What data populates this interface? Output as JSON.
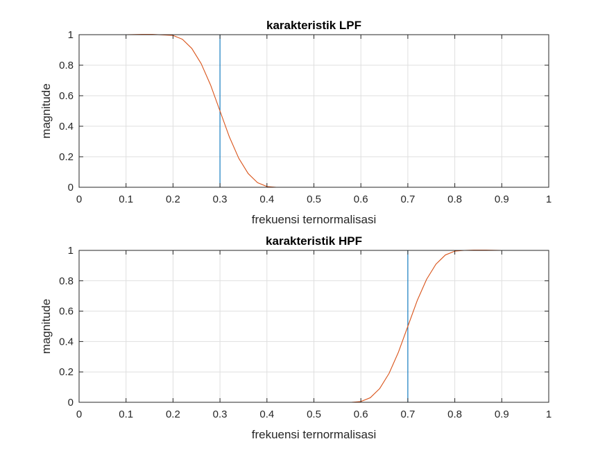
{
  "chart_data": [
    {
      "type": "line",
      "title": "karakteristik LPF",
      "xlabel": "frekuensi ternormalisasi",
      "ylabel": "magnitude",
      "xlim": [
        0,
        1
      ],
      "ylim": [
        0,
        1
      ],
      "xticks": [
        "0",
        "0.1",
        "0.2",
        "0.3",
        "0.4",
        "0.5",
        "0.6",
        "0.7",
        "0.8",
        "0.9",
        "1"
      ],
      "yticks": [
        "0",
        "0.2",
        "0.4",
        "0.6",
        "0.8",
        "1"
      ],
      "grid": true,
      "series": [
        {
          "color": "#0072BD",
          "x": [
            0,
            0.3,
            0.3,
            1
          ],
          "y": [
            1,
            1,
            0,
            0
          ]
        },
        {
          "color": "#D95319",
          "x": [
            0,
            0.1,
            0.15,
            0.2,
            0.22,
            0.24,
            0.26,
            0.28,
            0.3,
            0.32,
            0.34,
            0.36,
            0.38,
            0.4,
            0.42,
            0.45,
            0.5,
            0.6,
            0.7,
            0.8,
            0.9,
            1
          ],
          "y": [
            1,
            1,
            1.003,
            0.995,
            0.97,
            0.91,
            0.81,
            0.67,
            0.5,
            0.33,
            0.19,
            0.09,
            0.03,
            0.005,
            0,
            0,
            0,
            0,
            0,
            0,
            0,
            0
          ]
        }
      ]
    },
    {
      "type": "line",
      "title": "karakteristik HPF",
      "xlabel": "frekuensi ternormalisasi",
      "ylabel": "magnitude",
      "xlim": [
        0,
        1
      ],
      "ylim": [
        0,
        1
      ],
      "xticks": [
        "0",
        "0.1",
        "0.2",
        "0.3",
        "0.4",
        "0.5",
        "0.6",
        "0.7",
        "0.8",
        "0.9",
        "1"
      ],
      "yticks": [
        "0",
        "0.2",
        "0.4",
        "0.6",
        "0.8",
        "1"
      ],
      "grid": true,
      "series": [
        {
          "color": "#0072BD",
          "x": [
            0,
            0.6,
            0.6,
            0.7,
            0.7,
            1
          ],
          "y": [
            0,
            0,
            0,
            0,
            1,
            1
          ]
        },
        {
          "color": "#D95319",
          "x": [
            0,
            0.5,
            0.58,
            0.6,
            0.62,
            0.64,
            0.66,
            0.68,
            0.7,
            0.72,
            0.74,
            0.76,
            0.78,
            0.8,
            0.82,
            0.85,
            0.9,
            1
          ],
          "y": [
            0,
            0,
            0,
            0.005,
            0.03,
            0.09,
            0.19,
            0.33,
            0.5,
            0.67,
            0.81,
            0.91,
            0.97,
            0.995,
            1,
            1.003,
            1,
            1
          ]
        }
      ]
    }
  ]
}
